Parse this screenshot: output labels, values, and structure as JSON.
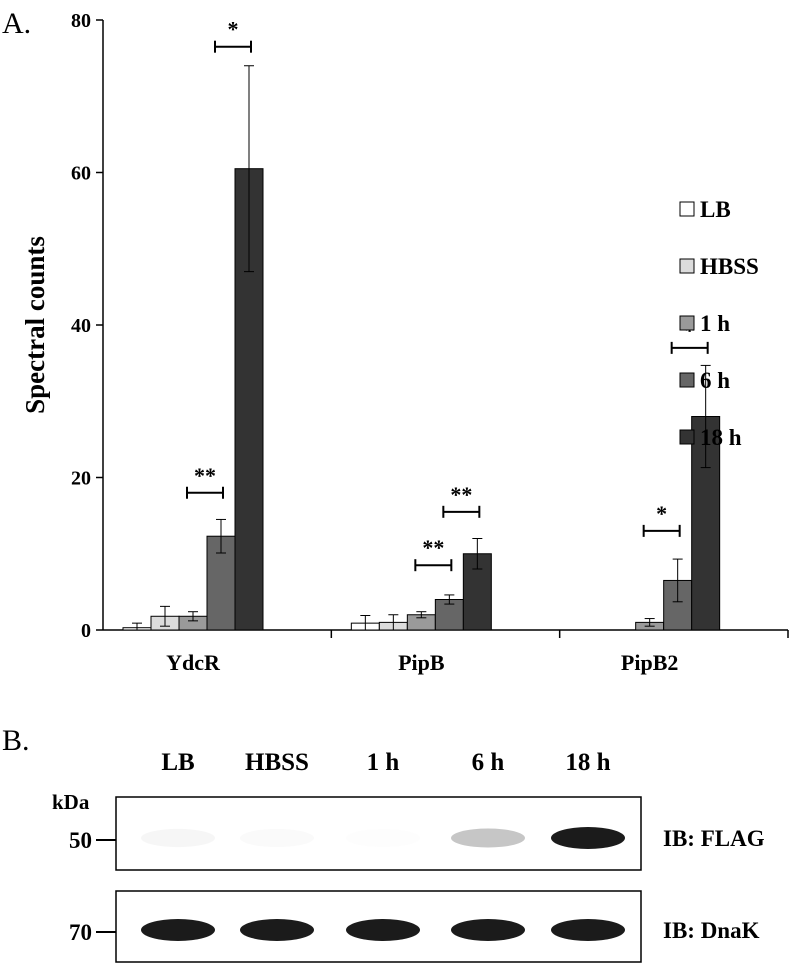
{
  "panel_a": {
    "label": "A."
  },
  "panel_b": {
    "label": "B.",
    "lanes": [
      "LB",
      "HBSS",
      "1 h",
      "6 h",
      "18 h"
    ],
    "kda_label": "kDa",
    "blots": [
      {
        "ib_label": "IB: FLAG",
        "marker": "50",
        "band_intensity": [
          0.04,
          0.02,
          0.01,
          0.25,
          1.0
        ]
      },
      {
        "ib_label": "IB: DnaK",
        "marker": "70",
        "band_intensity": [
          1.0,
          1.0,
          1.0,
          1.0,
          1.0
        ]
      }
    ]
  },
  "chart_data": {
    "type": "bar",
    "ylabel": "Spectral counts",
    "xlabel": "",
    "ylim": [
      0,
      80
    ],
    "yticks": [
      0,
      20,
      40,
      60,
      80
    ],
    "categories": [
      "YdcR",
      "PipB",
      "PipB2"
    ],
    "legend_position": "right",
    "series": [
      {
        "name": "LB",
        "color": "#ffffff",
        "values": [
          0.3,
          0.9,
          0
        ],
        "errors": [
          0.6,
          1.0,
          0
        ]
      },
      {
        "name": "HBSS",
        "color": "#dcdcdc",
        "values": [
          1.8,
          1.0,
          0
        ],
        "errors": [
          1.3,
          1.0,
          0
        ]
      },
      {
        "name": "1 h",
        "color": "#9a9a9a",
        "values": [
          1.8,
          2.0,
          1.0
        ],
        "errors": [
          0.6,
          0.4,
          0.5
        ]
      },
      {
        "name": "6 h",
        "color": "#666666",
        "values": [
          12.3,
          4.0,
          6.5
        ],
        "errors": [
          2.2,
          0.6,
          2.8
        ]
      },
      {
        "name": "18 h",
        "color": "#333333",
        "values": [
          60.5,
          10.0,
          28.0
        ],
        "errors": [
          13.5,
          2.0,
          6.7
        ]
      }
    ],
    "significance": [
      {
        "category": "YdcR",
        "from_series": "6 h",
        "to_series": "6 h",
        "y": 18.0,
        "label": "**"
      },
      {
        "category": "YdcR",
        "from_series": "18 h",
        "to_series": "18 h",
        "y": 76.5,
        "label": "*"
      },
      {
        "category": "PipB",
        "from_series": "6 h",
        "to_series": "6 h",
        "y": 8.5,
        "label": "**"
      },
      {
        "category": "PipB",
        "from_series": "18 h",
        "to_series": "18 h",
        "y": 15.5,
        "label": "**"
      },
      {
        "category": "PipB2",
        "from_series": "6 h",
        "to_series": "6 h",
        "y": 13.0,
        "label": "*"
      },
      {
        "category": "PipB2",
        "from_series": "18 h",
        "to_series": "18 h",
        "y": 37.0,
        "label": "*"
      }
    ]
  }
}
